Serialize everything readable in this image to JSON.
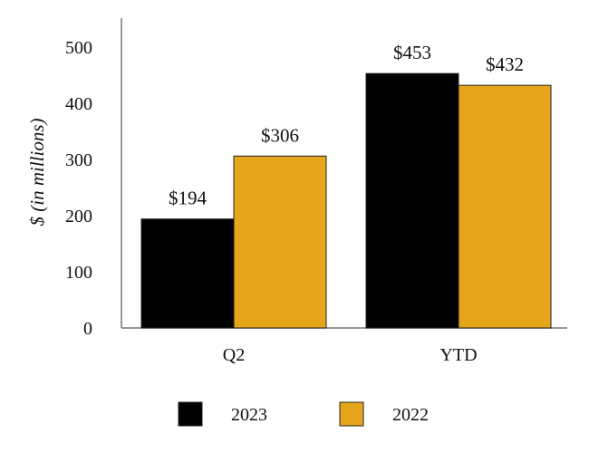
{
  "chart_data": {
    "type": "bar",
    "categories": [
      "Q2",
      "YTD"
    ],
    "series": [
      {
        "name": "2023",
        "values": [
          194,
          453
        ],
        "labels": [
          "$194",
          "$453"
        ],
        "color": "#000000"
      },
      {
        "name": "2022",
        "values": [
          306,
          432
        ],
        "labels": [
          "$306",
          "$432"
        ],
        "color": "#E5A61B"
      }
    ],
    "ylabel": "$ (in millions)",
    "xlabel": "",
    "ylim": [
      0,
      500
    ],
    "yticks": [
      0,
      100,
      200,
      300,
      400,
      500
    ],
    "ytick_labels": [
      "0",
      "100",
      "200",
      "300",
      "400",
      "500"
    ],
    "grid": false,
    "legend": "bottom"
  }
}
